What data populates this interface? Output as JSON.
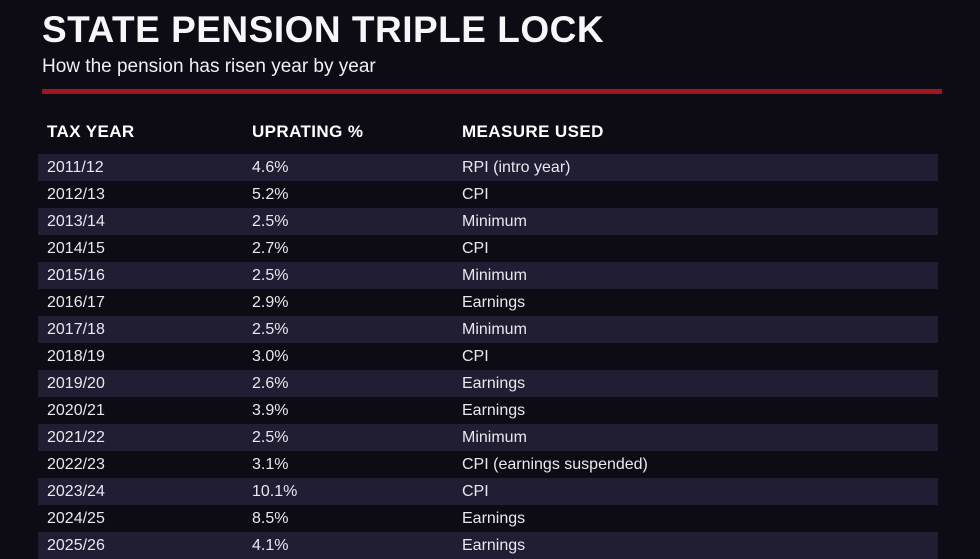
{
  "page": {
    "title": "STATE PENSION TRIPLE LOCK",
    "subtitle": "How the pension has risen year by year",
    "accent_color": "#a31421",
    "background_color": "#0d0b14",
    "row_stripe_color": "#211e33",
    "text_color": "#e9e7ef"
  },
  "table": {
    "columns": [
      "TAX YEAR",
      "UPRATING %",
      "MEASURE USED"
    ],
    "rows": [
      {
        "tax_year": "2011/12",
        "uprating": "4.6%",
        "measure": "RPI (intro year)"
      },
      {
        "tax_year": "2012/13",
        "uprating": "5.2%",
        "measure": "CPI"
      },
      {
        "tax_year": "2013/14",
        "uprating": "2.5%",
        "measure": "Minimum"
      },
      {
        "tax_year": "2014/15",
        "uprating": "2.7%",
        "measure": "CPI"
      },
      {
        "tax_year": "2015/16",
        "uprating": "2.5%",
        "measure": "Minimum"
      },
      {
        "tax_year": "2016/17",
        "uprating": "2.9%",
        "measure": "Earnings"
      },
      {
        "tax_year": "2017/18",
        "uprating": "2.5%",
        "measure": "Minimum"
      },
      {
        "tax_year": "2018/19",
        "uprating": "3.0%",
        "measure": "CPI"
      },
      {
        "tax_year": "2019/20",
        "uprating": "2.6%",
        "measure": "Earnings"
      },
      {
        "tax_year": "2020/21",
        "uprating": "3.9%",
        "measure": "Earnings"
      },
      {
        "tax_year": "2021/22",
        "uprating": "2.5%",
        "measure": "Minimum"
      },
      {
        "tax_year": "2022/23",
        "uprating": "3.1%",
        "measure": "CPI (earnings suspended)"
      },
      {
        "tax_year": "2023/24",
        "uprating": "10.1%",
        "measure": "CPI"
      },
      {
        "tax_year": "2024/25",
        "uprating": "8.5%",
        "measure": "Earnings"
      },
      {
        "tax_year": "2025/26",
        "uprating": "4.1%",
        "measure": "Earnings"
      }
    ]
  },
  "chart_data": {
    "type": "table",
    "title": "STATE PENSION TRIPLE LOCK",
    "subtitle": "How the pension has risen year by year",
    "columns": [
      "TAX YEAR",
      "UPRATING %",
      "MEASURE USED"
    ],
    "categories": [
      "2011/12",
      "2012/13",
      "2013/14",
      "2014/15",
      "2015/16",
      "2016/17",
      "2017/18",
      "2018/19",
      "2019/20",
      "2020/21",
      "2021/22",
      "2022/23",
      "2023/24",
      "2024/25",
      "2025/26"
    ],
    "values": [
      4.6,
      5.2,
      2.5,
      2.7,
      2.5,
      2.9,
      2.5,
      3.0,
      2.6,
      3.9,
      2.5,
      3.1,
      10.1,
      8.5,
      4.1
    ],
    "measures": [
      "RPI (intro year)",
      "CPI",
      "Minimum",
      "CPI",
      "Minimum",
      "Earnings",
      "Minimum",
      "CPI",
      "Earnings",
      "Earnings",
      "Minimum",
      "CPI (earnings suspended)",
      "CPI",
      "Earnings",
      "Earnings"
    ],
    "ylabel": "Uprating %"
  }
}
